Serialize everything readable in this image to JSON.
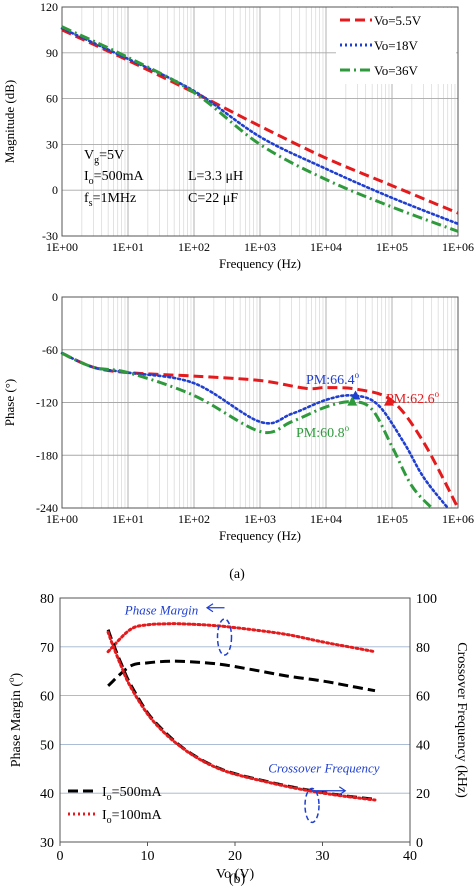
{
  "chart_data": [
    {
      "type": "line",
      "xscale": "log",
      "xlabel": "Frequency (Hz)",
      "ylabel": "Magnitude (dB)",
      "xlim": [
        1,
        1000000
      ],
      "ylim": [
        -30,
        120
      ],
      "xticks": [
        "1E+00",
        "1E+01",
        "1E+02",
        "1E+03",
        "1E+04",
        "1E+05",
        "1E+06"
      ],
      "yticks": [
        "120",
        "90",
        "60",
        "30",
        "0",
        "-30"
      ],
      "grid": true,
      "legend_position": "top-right",
      "annotations": [
        {
          "label": "vg",
          "text": "Vg=5V",
          "sub": "g"
        },
        {
          "label": "io",
          "text": "Io=500mA",
          "sub": "o"
        },
        {
          "label": "fs",
          "text": "fs=1MHz",
          "sub": "s"
        },
        {
          "label": "l",
          "text": "L=3.3 μH"
        },
        {
          "label": "c",
          "text": "C=22 μF"
        }
      ],
      "series": [
        {
          "name": "Vo=5.5V",
          "color": "#e41a1c",
          "dash": "dash",
          "x": [
            1,
            10,
            100,
            1000,
            10000,
            100000,
            1000000
          ],
          "y": [
            105,
            85,
            64,
            42,
            21,
            3,
            -15
          ]
        },
        {
          "name": "Vo=18V",
          "color": "#1f3fd0",
          "dash": "dot",
          "x": [
            1,
            10,
            100,
            1000,
            10000,
            100000,
            1000000
          ],
          "y": [
            106,
            86,
            65,
            35,
            14,
            -5,
            -22
          ]
        },
        {
          "name": "Vo=36V",
          "color": "#2e9a3c",
          "dash": "dashdot",
          "x": [
            1,
            10,
            100,
            1000,
            10000,
            100000,
            1000000
          ],
          "y": [
            107,
            87,
            64,
            30,
            7,
            -11,
            -27
          ]
        }
      ]
    },
    {
      "type": "line",
      "xscale": "log",
      "xlabel": "Frequency (Hz)",
      "ylabel": "Phase (°)",
      "xlim": [
        1,
        1000000
      ],
      "ylim": [
        -240,
        0
      ],
      "xticks": [
        "1E+00",
        "1E+01",
        "1E+02",
        "1E+03",
        "1E+04",
        "1E+05",
        "1E+06"
      ],
      "yticks": [
        "0",
        "-60",
        "-120",
        "-180",
        "-240"
      ],
      "grid": true,
      "annotations": [
        {
          "text": "PM:66.4°",
          "color": "#1f3fd0"
        },
        {
          "text": "PM:62.6°",
          "color": "#e41a1c"
        },
        {
          "text": "PM:60.8°",
          "color": "#2e9a3c"
        }
      ],
      "series": [
        {
          "color": "#e41a1c",
          "dash": "dash",
          "x": [
            1,
            3,
            10,
            100,
            1000,
            5000,
            10000,
            30000,
            100000,
            300000,
            1000000
          ],
          "y": [
            -64,
            -80,
            -86,
            -90,
            -95,
            -104,
            -103,
            -105,
            -118,
            -165,
            -240
          ]
        },
        {
          "color": "#1f3fd0",
          "dash": "dot",
          "x": [
            1,
            3,
            10,
            100,
            1000,
            3000,
            10000,
            25000,
            60000,
            150000,
            300000,
            700000
          ],
          "y": [
            -64,
            -80,
            -86,
            -98,
            -142,
            -133,
            -117,
            -112,
            -122,
            -165,
            -205,
            -240
          ]
        },
        {
          "color": "#2e9a3c",
          "dash": "dashdot",
          "x": [
            1,
            3,
            10,
            100,
            1000,
            3000,
            10000,
            25000,
            50000,
            100000,
            200000,
            400000
          ],
          "y": [
            -64,
            -80,
            -86,
            -112,
            -153,
            -142,
            -125,
            -119,
            -128,
            -170,
            -215,
            -240
          ]
        }
      ]
    },
    {
      "type": "line",
      "xlabel": "Vo (V)",
      "ylabel": "Phase Margin (°)",
      "ylabel2": "Crossover Frequency (kHz)",
      "xlim": [
        0,
        40
      ],
      "ylim": [
        30,
        80
      ],
      "ylim2": [
        0,
        100
      ],
      "xticks": [
        "0",
        "10",
        "20",
        "30",
        "40"
      ],
      "yticks": [
        "30",
        "40",
        "50",
        "60",
        "70",
        "80"
      ],
      "yticks2": [
        "0",
        "20",
        "40",
        "60",
        "80",
        "100"
      ],
      "grid": true,
      "legend_position": "bottom-left",
      "annotations": [
        {
          "text": "Phase Margin",
          "color": "#1f3fd0"
        },
        {
          "text": "Crossover Frequency",
          "color": "#1f3fd0"
        }
      ],
      "series": [
        {
          "name": "Io=500mA",
          "color": "#000000",
          "dash": "dash",
          "axis": "left",
          "x": [
            5.5,
            8,
            10,
            12,
            14,
            18,
            22,
            26,
            30,
            33,
            36
          ],
          "y": [
            62,
            66,
            66.7,
            67,
            67,
            66.5,
            65.3,
            64,
            63,
            62,
            61
          ]
        },
        {
          "name": "Io=100mA",
          "color": "#e41a1c",
          "dash": "dot",
          "axis": "left",
          "x": [
            5.5,
            8,
            10,
            12,
            14,
            18,
            22,
            26,
            30,
            33,
            36
          ],
          "y": [
            69,
            73.5,
            74.5,
            74.7,
            74.7,
            74.3,
            73.5,
            72.5,
            71,
            70,
            69
          ]
        },
        {
          "name": "Io=500mA",
          "color": "#000000",
          "dash": "dash",
          "axis": "right",
          "legend": false,
          "x": [
            5.5,
            6,
            7,
            8,
            10,
            12,
            14,
            16,
            18,
            20,
            24,
            28,
            32,
            36
          ],
          "y": [
            87,
            82,
            73,
            65,
            53,
            45,
            38.7,
            34,
            30.5,
            28,
            24.5,
            21.5,
            19.2,
            17.5
          ]
        },
        {
          "name": "Io=100mA",
          "color": "#e41a1c",
          "dash": "dot",
          "axis": "right",
          "legend": false,
          "x": [
            5.5,
            6,
            7,
            8,
            10,
            12,
            14,
            16,
            18,
            20,
            24,
            28,
            32,
            36
          ],
          "y": [
            86,
            81,
            72,
            64,
            52.5,
            44.5,
            38.5,
            33.8,
            30.3,
            27.8,
            24.3,
            21.3,
            19,
            17.2
          ]
        }
      ]
    }
  ],
  "captions": [
    "(a)",
    "(b)"
  ]
}
